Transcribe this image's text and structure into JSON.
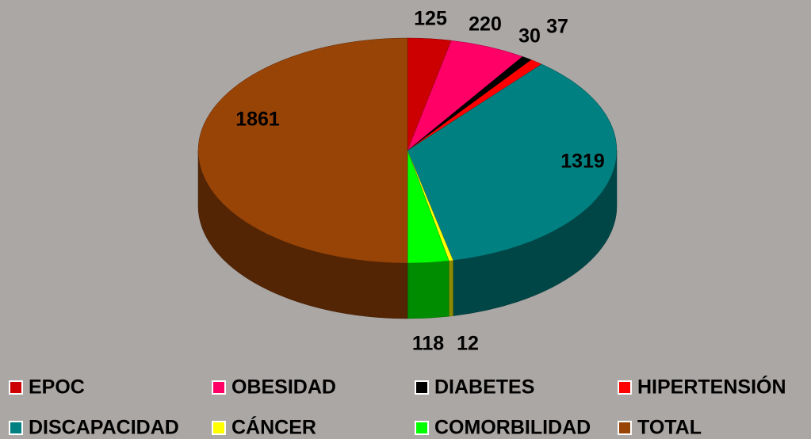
{
  "chart_data": {
    "type": "pie3d",
    "categories": [
      "EPOC",
      "OBESIDAD",
      "DIABETES",
      "HIPERTENSIÓN",
      "DISCAPACIDAD",
      "CÁNCER",
      "COMORBILIDAD",
      "TOTAL"
    ],
    "values": [
      125,
      220,
      30,
      37,
      1319,
      12,
      118,
      1861
    ],
    "colors": [
      "#cc0000",
      "#ff0066",
      "#000000",
      "#ff0000",
      "#008080",
      "#ffff00",
      "#00ff00",
      "#994407"
    ],
    "legend": "bottom"
  }
}
